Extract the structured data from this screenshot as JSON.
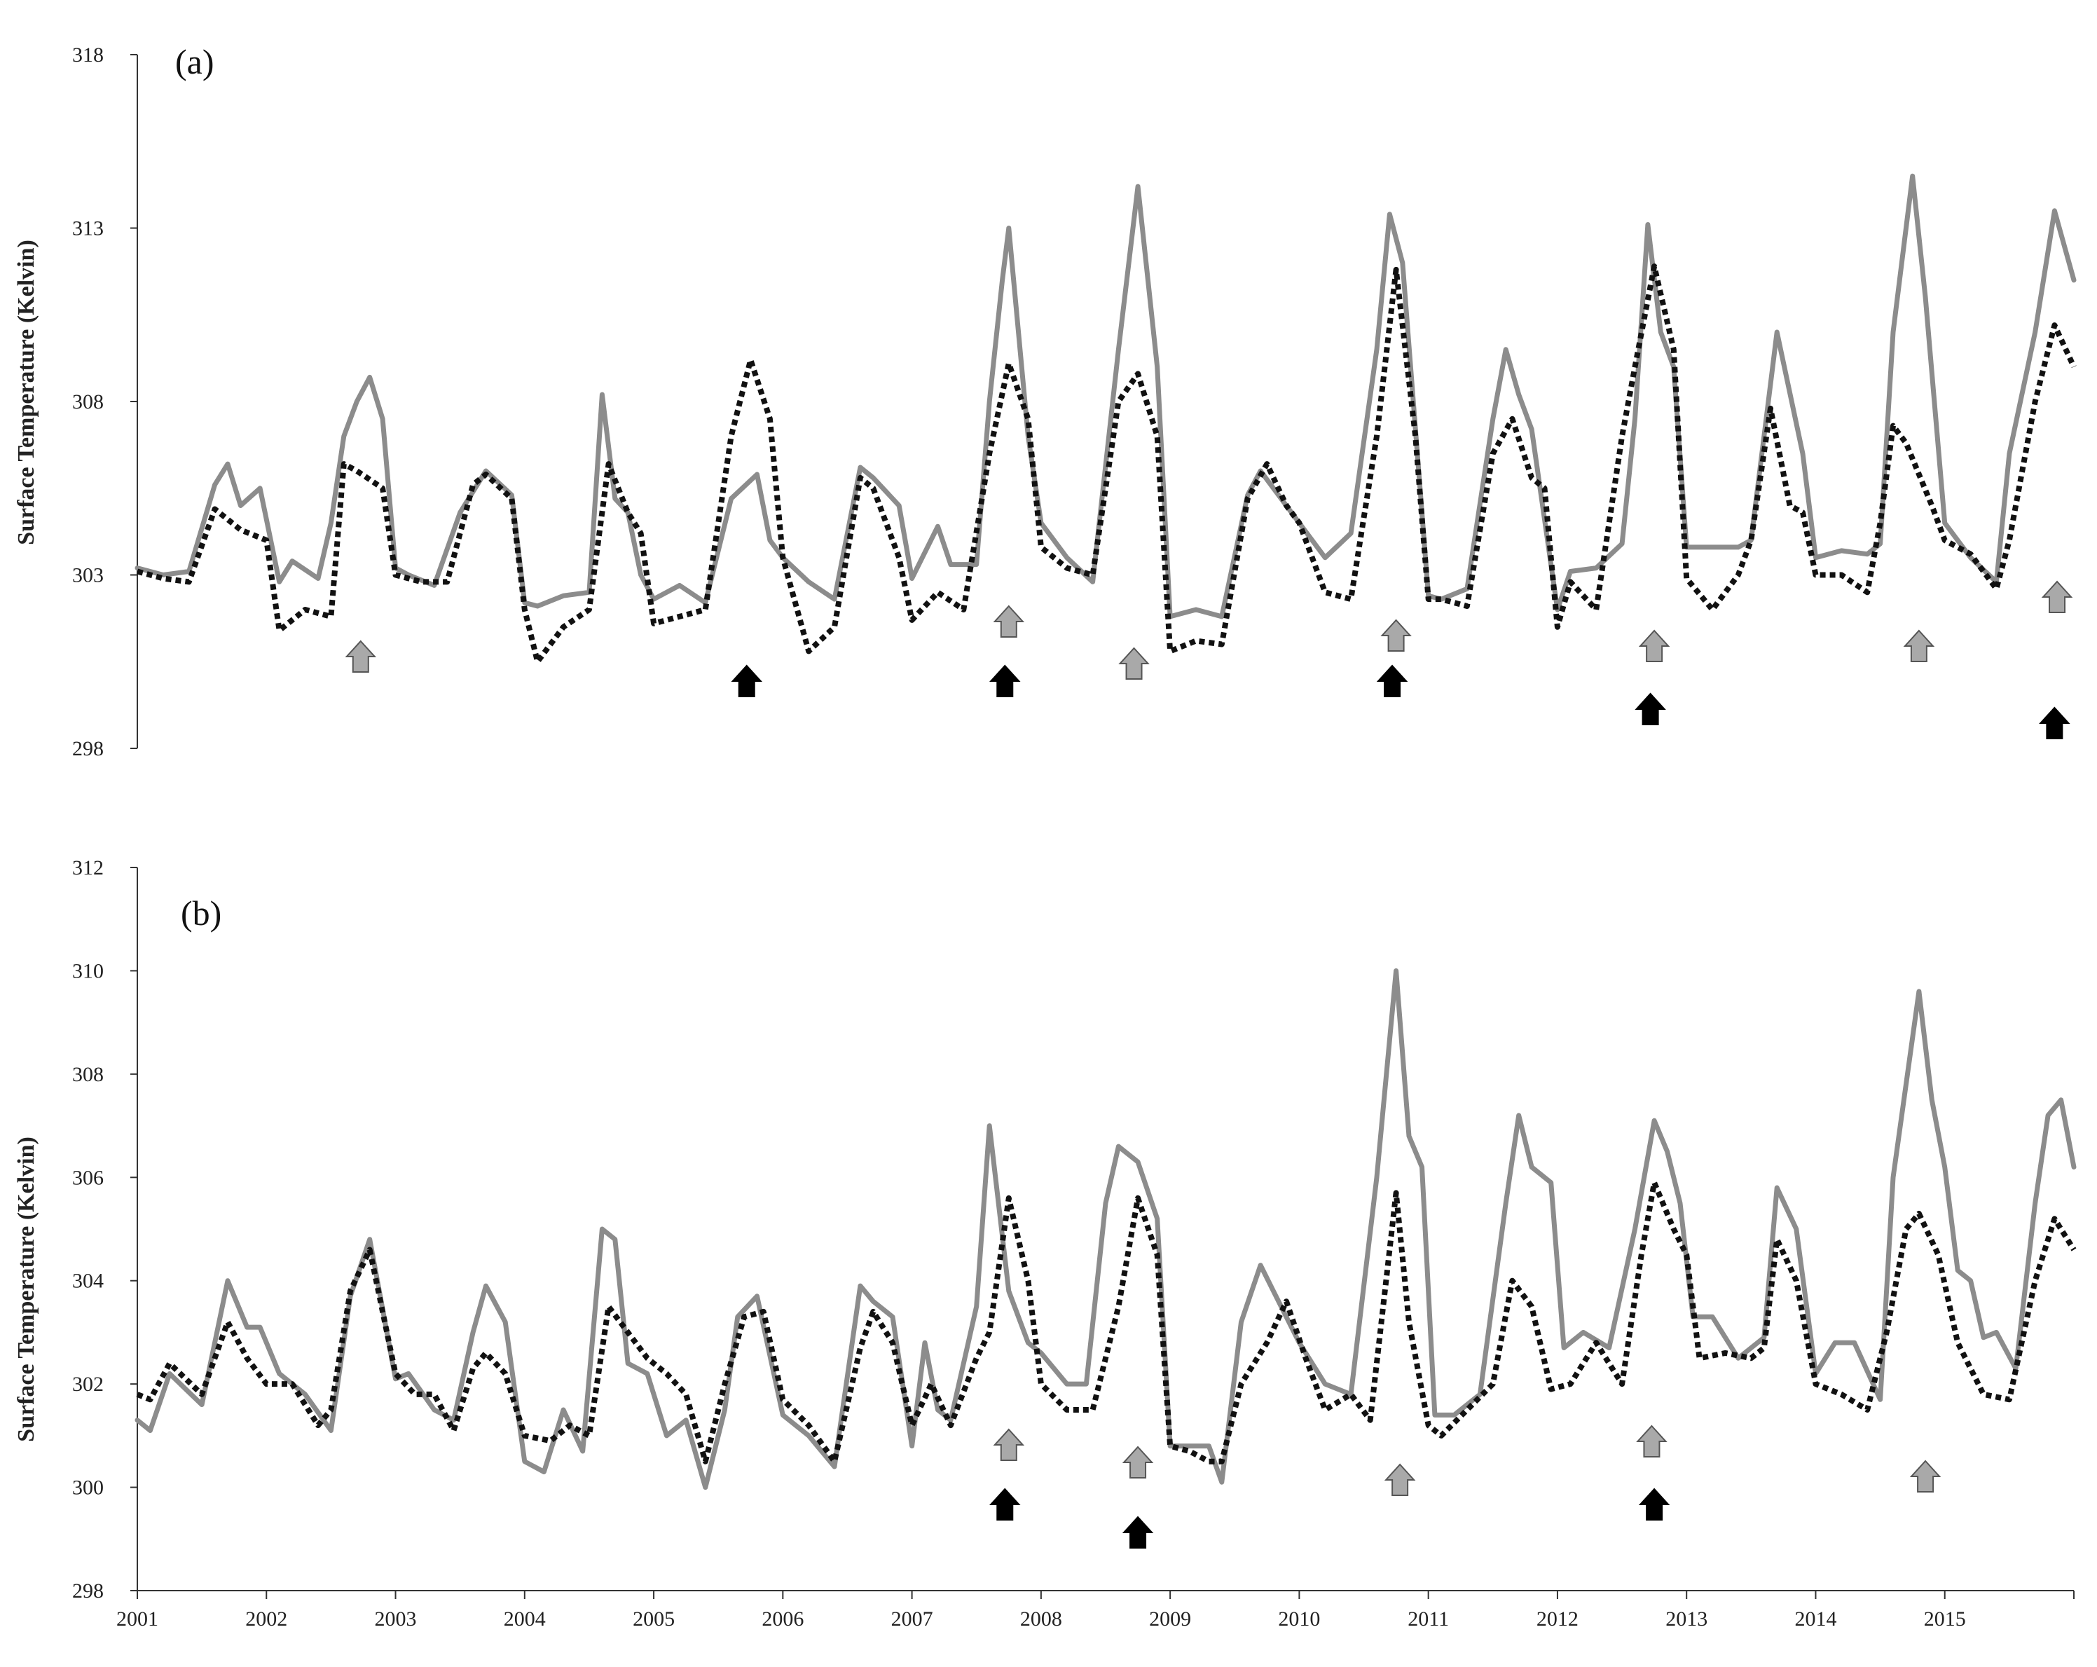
{
  "chart_data": [
    {
      "type": "line",
      "panel_label": "(a)",
      "ylabel": "Surface Temperature (Kelvin)",
      "ylim": [
        298,
        318
      ],
      "yticks": [
        298,
        303,
        308,
        313,
        318
      ],
      "xlim": [
        2001,
        2016
      ],
      "grid": false,
      "series": [
        {
          "style": "solid",
          "color": "#8c8c8c",
          "x": [
            2001.0,
            2001.2,
            2001.4,
            2001.6,
            2001.7,
            2001.8,
            2001.95,
            2002.1,
            2002.2,
            2002.4,
            2002.5,
            2002.6,
            2002.7,
            2002.8,
            2002.9,
            2003.0,
            2003.1,
            2003.3,
            2003.5,
            2003.7,
            2003.9,
            2004.0,
            2004.1,
            2004.3,
            2004.5,
            2004.6,
            2004.7,
            2004.8,
            2004.9,
            2005.0,
            2005.2,
            2005.4,
            2005.6,
            2005.8,
            2005.9,
            2006.0,
            2006.2,
            2006.4,
            2006.6,
            2006.7,
            2006.9,
            2007.0,
            2007.2,
            2007.3,
            2007.5,
            2007.6,
            2007.7,
            2007.75,
            2007.9,
            2008.0,
            2008.2,
            2008.4,
            2008.6,
            2008.75,
            2008.9,
            2009.0,
            2009.2,
            2009.4,
            2009.6,
            2009.7,
            2009.8,
            2010.0,
            2010.2,
            2010.4,
            2010.6,
            2010.7,
            2010.8,
            2011.0,
            2011.1,
            2011.3,
            2011.5,
            2011.6,
            2011.7,
            2011.8,
            2012.0,
            2012.1,
            2012.3,
            2012.5,
            2012.6,
            2012.7,
            2012.8,
            2012.9,
            2013.0,
            2013.2,
            2013.4,
            2013.5,
            2013.6,
            2013.7,
            2013.9,
            2014.0,
            2014.2,
            2014.4,
            2014.5,
            2014.6,
            2014.75,
            2014.85,
            2015.0,
            2015.2,
            2015.4,
            2015.5,
            2015.7,
            2015.85,
            2016.0
          ],
          "values": [
            303.2,
            303.0,
            303.1,
            305.6,
            306.2,
            305.0,
            305.5,
            302.8,
            303.4,
            302.9,
            304.5,
            307.0,
            308.0,
            308.7,
            307.5,
            303.2,
            303.0,
            302.7,
            304.8,
            306.0,
            305.3,
            302.2,
            302.1,
            302.4,
            302.5,
            308.2,
            305.2,
            304.8,
            303.0,
            302.3,
            302.7,
            302.2,
            305.2,
            305.9,
            304.0,
            303.5,
            302.8,
            302.3,
            306.1,
            305.8,
            305.0,
            302.9,
            304.4,
            303.3,
            303.3,
            308.0,
            311.5,
            313.0,
            307.0,
            304.5,
            303.5,
            302.8,
            309.5,
            314.2,
            309.0,
            301.8,
            302.0,
            301.8,
            305.3,
            306.0,
            305.5,
            304.5,
            303.5,
            304.2,
            309.5,
            313.4,
            312.0,
            302.4,
            302.3,
            302.6,
            307.5,
            309.5,
            308.2,
            307.2,
            302.0,
            303.1,
            303.2,
            303.9,
            307.5,
            313.1,
            310.0,
            309.0,
            303.8,
            303.8,
            303.8,
            304.0,
            307.0,
            310.0,
            306.5,
            303.5,
            303.7,
            303.6,
            303.9,
            310.0,
            314.5,
            311.0,
            304.5,
            303.5,
            302.8,
            306.5,
            310.0,
            313.5,
            311.5
          ]
        },
        {
          "style": "dotted",
          "color": "#111111",
          "x": [
            2001.0,
            2001.2,
            2001.4,
            2001.6,
            2001.8,
            2002.0,
            2002.1,
            2002.3,
            2002.5,
            2002.6,
            2002.7,
            2002.9,
            2003.0,
            2003.2,
            2003.4,
            2003.6,
            2003.7,
            2003.9,
            2004.0,
            2004.1,
            2004.3,
            2004.5,
            2004.65,
            2004.8,
            2004.9,
            2005.0,
            2005.2,
            2005.4,
            2005.6,
            2005.75,
            2005.9,
            2006.0,
            2006.2,
            2006.4,
            2006.6,
            2006.7,
            2006.9,
            2007.0,
            2007.2,
            2007.4,
            2007.6,
            2007.75,
            2007.9,
            2008.0,
            2008.2,
            2008.4,
            2008.6,
            2008.75,
            2008.9,
            2009.0,
            2009.2,
            2009.4,
            2009.6,
            2009.75,
            2009.9,
            2010.0,
            2010.2,
            2010.4,
            2010.6,
            2010.75,
            2010.9,
            2011.0,
            2011.1,
            2011.3,
            2011.5,
            2011.65,
            2011.8,
            2011.9,
            2012.0,
            2012.1,
            2012.3,
            2012.5,
            2012.6,
            2012.75,
            2012.9,
            2013.0,
            2013.2,
            2013.4,
            2013.5,
            2013.65,
            2013.8,
            2013.9,
            2014.0,
            2014.2,
            2014.4,
            2014.5,
            2014.6,
            2014.7,
            2014.9,
            2015.0,
            2015.2,
            2015.4,
            2015.5,
            2015.7,
            2015.85,
            2016.0
          ],
          "values": [
            303.1,
            302.9,
            302.8,
            304.9,
            304.3,
            304.0,
            301.4,
            302.0,
            301.8,
            306.2,
            306.0,
            305.5,
            303.0,
            302.8,
            302.8,
            305.6,
            305.9,
            305.2,
            302.0,
            300.5,
            301.5,
            302.0,
            306.2,
            304.8,
            304.2,
            301.6,
            301.8,
            302.0,
            307.0,
            309.2,
            307.5,
            303.5,
            300.8,
            301.5,
            305.8,
            305.5,
            303.5,
            301.7,
            302.5,
            302.0,
            306.5,
            309.1,
            307.5,
            303.8,
            303.2,
            303.0,
            308.0,
            308.8,
            307.0,
            300.8,
            301.1,
            301.0,
            305.2,
            306.2,
            305.0,
            304.5,
            302.5,
            302.3,
            307.0,
            311.8,
            307.0,
            302.3,
            302.3,
            302.1,
            306.5,
            307.5,
            305.8,
            305.5,
            301.5,
            302.8,
            302.0,
            307.0,
            309.0,
            311.9,
            309.5,
            302.9,
            302.0,
            303.0,
            304.0,
            307.8,
            305.0,
            304.8,
            303.0,
            303.0,
            302.5,
            304.5,
            307.3,
            306.8,
            305.0,
            304.0,
            303.6,
            302.6,
            304.0,
            308.0,
            310.2,
            309.0
          ]
        }
      ],
      "arrows": {
        "gray": [
          2002.73,
          2007.75,
          2008.72,
          2010.75,
          2012.75,
          2014.8,
          2015.87
        ],
        "black": [
          2005.72,
          2007.72,
          2010.72,
          2012.72,
          2015.85
        ]
      }
    },
    {
      "type": "line",
      "panel_label": "(b)",
      "ylabel": "Surface Temperature (Kelvin)",
      "ylim": [
        298,
        312
      ],
      "yticks": [
        298,
        300,
        302,
        304,
        306,
        308,
        310,
        312
      ],
      "xlim": [
        2001,
        2016
      ],
      "xticks": [
        "2001",
        "2002",
        "2003",
        "2004",
        "2005",
        "2006",
        "2007",
        "2008",
        "2009",
        "2010",
        "2011",
        "2012",
        "2013",
        "2014",
        "2015"
      ],
      "grid": false,
      "series": [
        {
          "style": "solid",
          "color": "#8c8c8c",
          "x": [
            2001.0,
            2001.1,
            2001.25,
            2001.5,
            2001.7,
            2001.85,
            2001.95,
            2002.1,
            2002.3,
            2002.5,
            2002.65,
            2002.8,
            2003.0,
            2003.1,
            2003.3,
            2003.45,
            2003.6,
            2003.7,
            2003.85,
            2004.0,
            2004.15,
            2004.3,
            2004.45,
            2004.6,
            2004.7,
            2004.8,
            2004.95,
            2005.1,
            2005.25,
            2005.4,
            2005.55,
            2005.65,
            2005.8,
            2006.0,
            2006.2,
            2006.4,
            2006.6,
            2006.7,
            2006.85,
            2007.0,
            2007.1,
            2007.2,
            2007.3,
            2007.5,
            2007.6,
            2007.75,
            2007.9,
            2008.0,
            2008.2,
            2008.35,
            2008.5,
            2008.6,
            2008.75,
            2008.9,
            2009.0,
            2009.1,
            2009.3,
            2009.4,
            2009.55,
            2009.7,
            2009.8,
            2010.0,
            2010.2,
            2010.4,
            2010.6,
            2010.75,
            2010.85,
            2010.95,
            2011.05,
            2011.2,
            2011.4,
            2011.6,
            2011.7,
            2011.8,
            2011.95,
            2012.05,
            2012.2,
            2012.4,
            2012.6,
            2012.75,
            2012.85,
            2012.95,
            2013.05,
            2013.2,
            2013.4,
            2013.6,
            2013.7,
            2013.85,
            2014.0,
            2014.15,
            2014.3,
            2014.5,
            2014.6,
            2014.8,
            2014.9,
            2015.0,
            2015.1,
            2015.2,
            2015.3,
            2015.4,
            2015.55,
            2015.7,
            2015.8,
            2015.9,
            2016.0
          ],
          "values": [
            301.3,
            301.1,
            302.2,
            301.6,
            304.0,
            303.1,
            303.1,
            302.2,
            301.8,
            301.1,
            303.7,
            304.8,
            302.1,
            302.2,
            301.5,
            301.3,
            303.0,
            303.9,
            303.2,
            300.5,
            300.3,
            301.5,
            300.7,
            305.0,
            304.8,
            302.4,
            302.2,
            301.0,
            301.3,
            300.0,
            301.5,
            303.3,
            303.7,
            301.4,
            301.0,
            300.4,
            303.9,
            303.6,
            303.3,
            300.8,
            302.8,
            301.5,
            301.3,
            303.5,
            307.0,
            303.8,
            302.8,
            302.6,
            302.0,
            302.0,
            305.5,
            306.6,
            306.3,
            305.2,
            300.8,
            300.8,
            300.8,
            300.1,
            303.2,
            304.3,
            303.8,
            302.8,
            302.0,
            301.8,
            306.0,
            310.0,
            306.8,
            306.2,
            301.4,
            301.4,
            301.8,
            305.5,
            307.2,
            306.2,
            305.9,
            302.7,
            303.0,
            302.7,
            305.0,
            307.1,
            306.5,
            305.5,
            303.3,
            303.3,
            302.5,
            302.9,
            305.8,
            305.0,
            302.2,
            302.8,
            302.8,
            301.7,
            306.0,
            309.6,
            307.5,
            306.2,
            304.2,
            304.0,
            302.9,
            303.0,
            302.3,
            305.5,
            307.2,
            307.5,
            306.2
          ]
        },
        {
          "style": "dotted",
          "color": "#111111",
          "x": [
            2001.0,
            2001.1,
            2001.25,
            2001.5,
            2001.7,
            2001.85,
            2002.0,
            2002.2,
            2002.4,
            2002.5,
            2002.65,
            2002.8,
            2003.0,
            2003.15,
            2003.3,
            2003.45,
            2003.6,
            2003.7,
            2003.85,
            2004.0,
            2004.2,
            2004.35,
            2004.5,
            2004.65,
            2004.8,
            2004.95,
            2005.1,
            2005.25,
            2005.4,
            2005.55,
            2005.7,
            2005.85,
            2006.0,
            2006.2,
            2006.4,
            2006.6,
            2006.7,
            2006.85,
            2007.0,
            2007.15,
            2007.3,
            2007.5,
            2007.6,
            2007.75,
            2007.9,
            2008.0,
            2008.2,
            2008.4,
            2008.6,
            2008.75,
            2008.9,
            2009.0,
            2009.15,
            2009.3,
            2009.4,
            2009.55,
            2009.75,
            2009.9,
            2010.05,
            2010.2,
            2010.4,
            2010.55,
            2010.75,
            2010.85,
            2011.0,
            2011.1,
            2011.3,
            2011.5,
            2011.65,
            2011.8,
            2011.95,
            2012.1,
            2012.3,
            2012.5,
            2012.65,
            2012.75,
            2012.9,
            2013.0,
            2013.1,
            2013.3,
            2013.5,
            2013.6,
            2013.7,
            2013.85,
            2014.0,
            2014.2,
            2014.4,
            2014.55,
            2014.7,
            2014.8,
            2014.95,
            2015.1,
            2015.3,
            2015.5,
            2015.7,
            2015.85,
            2016.0
          ],
          "values": [
            301.8,
            301.7,
            302.4,
            301.8,
            303.2,
            302.5,
            302.0,
            302.0,
            301.2,
            301.5,
            303.8,
            304.6,
            302.2,
            301.8,
            301.8,
            301.1,
            302.3,
            302.6,
            302.2,
            301.0,
            300.9,
            301.2,
            301.0,
            303.5,
            303.0,
            302.5,
            302.2,
            301.8,
            300.5,
            302.0,
            303.3,
            303.4,
            301.7,
            301.2,
            300.5,
            302.7,
            303.4,
            302.8,
            301.2,
            302.0,
            301.2,
            302.5,
            303.0,
            305.6,
            304.0,
            302.0,
            301.5,
            301.5,
            303.5,
            305.6,
            304.5,
            300.8,
            300.7,
            300.5,
            300.5,
            302.0,
            302.8,
            303.6,
            302.5,
            301.5,
            301.8,
            301.3,
            305.7,
            303.2,
            301.2,
            301.0,
            301.5,
            302.0,
            304.0,
            303.5,
            301.9,
            302.0,
            302.8,
            302.0,
            304.5,
            305.9,
            305.0,
            304.5,
            302.5,
            302.6,
            302.5,
            302.7,
            304.8,
            304.0,
            302.0,
            301.8,
            301.5,
            303.0,
            305.0,
            305.3,
            304.5,
            302.8,
            301.8,
            301.7,
            304.0,
            305.2,
            304.6
          ]
        }
      ],
      "arrows": {
        "gray": [
          2007.75,
          2008.75,
          2010.78,
          2012.73,
          2014.85
        ],
        "black": [
          2007.72,
          2008.75,
          2012.75
        ]
      }
    }
  ]
}
